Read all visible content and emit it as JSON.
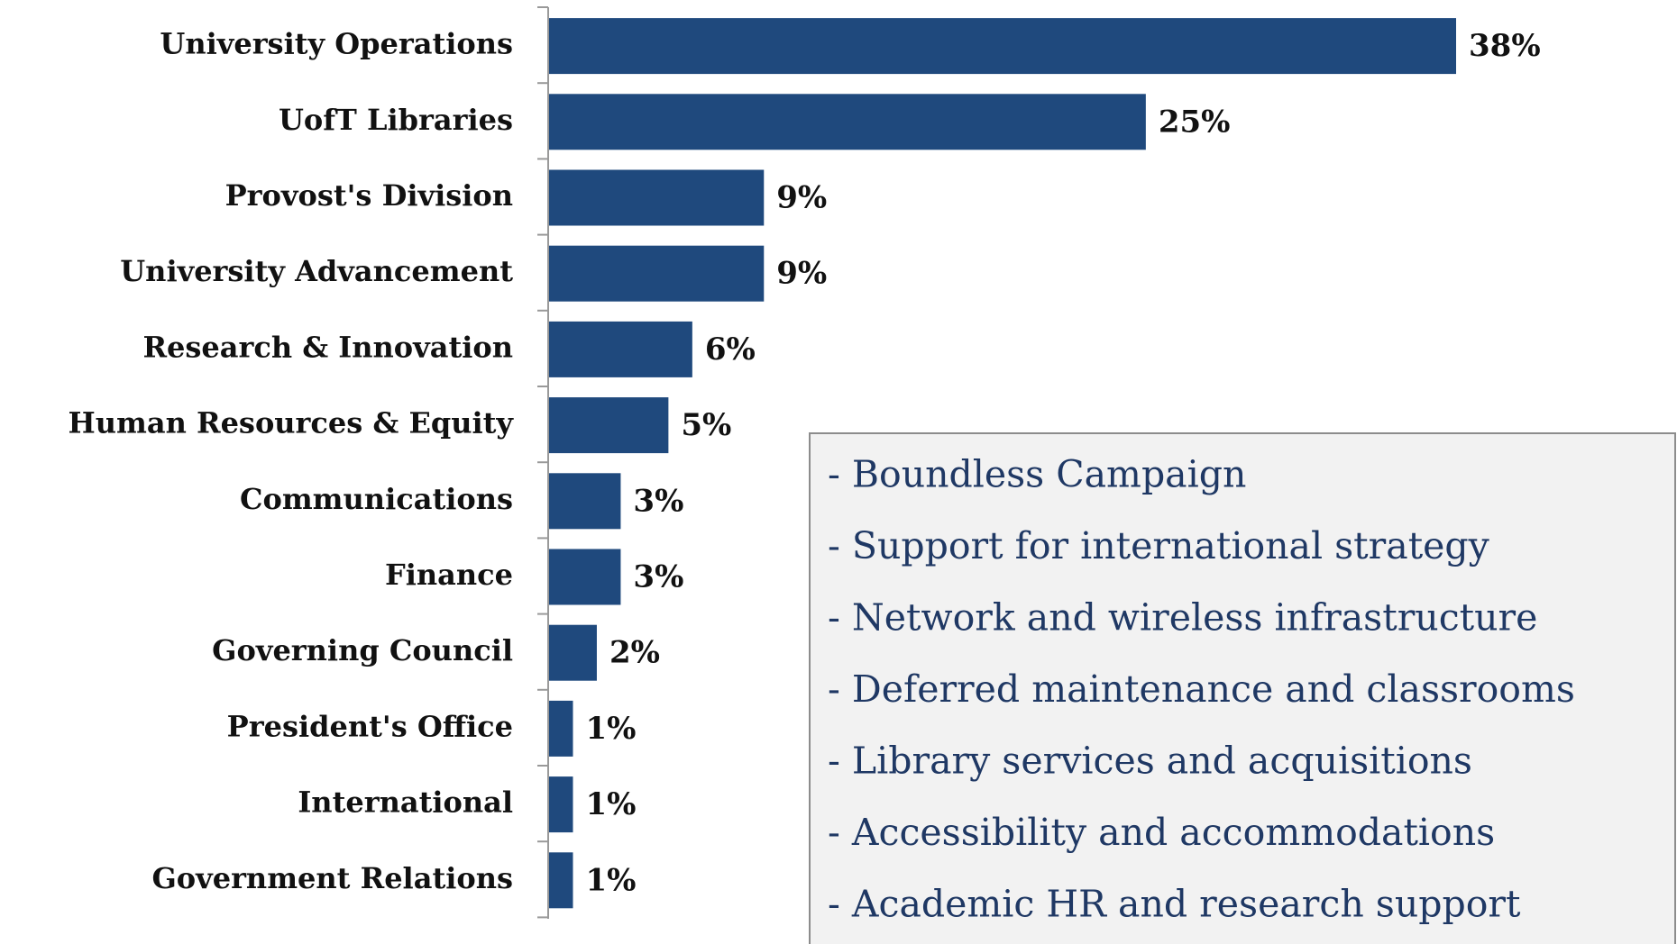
{
  "chart_data": {
    "type": "barh",
    "categories": [
      "University Operations",
      "UofT Libraries",
      "Provost's Division",
      "University Advancement",
      "Research & Innovation",
      "Human Resources & Equity",
      "Communications",
      "Finance",
      "Governing Council",
      "President's Office",
      "International",
      "Government Relations"
    ],
    "values": [
      38,
      25,
      9,
      9,
      6,
      5,
      3,
      3,
      2,
      1,
      1,
      1
    ],
    "value_labels": [
      "38%",
      "25%",
      "9%",
      "9%",
      "6%",
      "5%",
      "3%",
      "3%",
      "2%",
      "1%",
      "1%",
      "1%"
    ],
    "color": "#1f497d",
    "annotation_box": {
      "items": [
        "- Boundless Campaign",
        "- Support for international strategy",
        "- Network and wireless infrastructure",
        "- Deferred maintenance and classrooms",
        "- Library services and acquisitions",
        "- Accessibility and accommodations",
        "- Academic HR and research support"
      ]
    }
  }
}
